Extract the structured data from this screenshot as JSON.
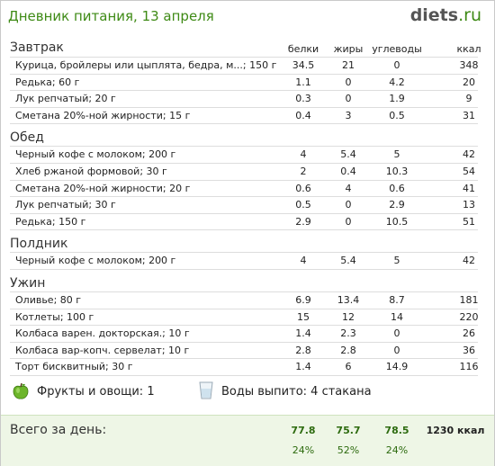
{
  "header": {
    "title": "Дневник питания, 13 апреля",
    "logo_main": "diets",
    "logo_tld": ".ru"
  },
  "columns": [
    "белки",
    "жиры",
    "углеводы",
    "ккал"
  ],
  "meals": [
    {
      "title": "Завтрак",
      "items": [
        {
          "name": "Курица, бройлеры или цыплята, бедра, м...; 150 г",
          "protein": "34.5",
          "fat": "21",
          "carbs": "0",
          "kcal": "348"
        },
        {
          "name": "Редька; 60 г",
          "protein": "1.1",
          "fat": "0",
          "carbs": "4.2",
          "kcal": "20"
        },
        {
          "name": "Лук репчатый; 20 г",
          "protein": "0.3",
          "fat": "0",
          "carbs": "1.9",
          "kcal": "9"
        },
        {
          "name": "Сметана 20%-ной жирности; 15 г",
          "protein": "0.4",
          "fat": "3",
          "carbs": "0.5",
          "kcal": "31"
        }
      ]
    },
    {
      "title": "Обед",
      "items": [
        {
          "name": "Черный кофе с молоком; 200 г",
          "protein": "4",
          "fat": "5.4",
          "carbs": "5",
          "kcal": "42"
        },
        {
          "name": "Хлеб ржаной формовой; 30 г",
          "protein": "2",
          "fat": "0.4",
          "carbs": "10.3",
          "kcal": "54"
        },
        {
          "name": "Сметана 20%-ной жирности; 20 г",
          "protein": "0.6",
          "fat": "4",
          "carbs": "0.6",
          "kcal": "41"
        },
        {
          "name": "Лук репчатый; 30 г",
          "protein": "0.5",
          "fat": "0",
          "carbs": "2.9",
          "kcal": "13"
        },
        {
          "name": "Редька; 150 г",
          "protein": "2.9",
          "fat": "0",
          "carbs": "10.5",
          "kcal": "51"
        }
      ]
    },
    {
      "title": "Полдник",
      "items": [
        {
          "name": "Черный кофе с молоком; 200 г",
          "protein": "4",
          "fat": "5.4",
          "carbs": "5",
          "kcal": "42"
        }
      ]
    },
    {
      "title": "Ужин",
      "items": [
        {
          "name": "Оливье; 80 г",
          "protein": "6.9",
          "fat": "13.4",
          "carbs": "8.7",
          "kcal": "181"
        },
        {
          "name": "Котлеты; 100 г",
          "protein": "15",
          "fat": "12",
          "carbs": "14",
          "kcal": "220"
        },
        {
          "name": "Колбаса варен. докторская.; 10 г",
          "protein": "1.4",
          "fat": "2.3",
          "carbs": "0",
          "kcal": "26"
        },
        {
          "name": "Колбаса вар-копч. сервелат; 10 г",
          "protein": "2.8",
          "fat": "2.8",
          "carbs": "0",
          "kcal": "36"
        },
        {
          "name": "Торт бисквитный; 30 г",
          "protein": "1.4",
          "fat": "6",
          "carbs": "14.9",
          "kcal": "116"
        }
      ]
    }
  ],
  "extras": {
    "fruits_label": "Фрукты и овощи: 1",
    "water_label": "Воды выпито: 4 стакана",
    "fruits_icon": "green-apple-icon",
    "water_icon": "water-glass-icon"
  },
  "totals": {
    "label": "Всего за день:",
    "protein": "77.8",
    "fat": "75.7",
    "carbs": "78.5",
    "kcal": "1230 ккал",
    "protein_pct": "24%",
    "fat_pct": "52%",
    "carbs_pct": "24%"
  },
  "colors": {
    "accent": "#3e8a15",
    "totals_bg": "#eef6e6"
  }
}
